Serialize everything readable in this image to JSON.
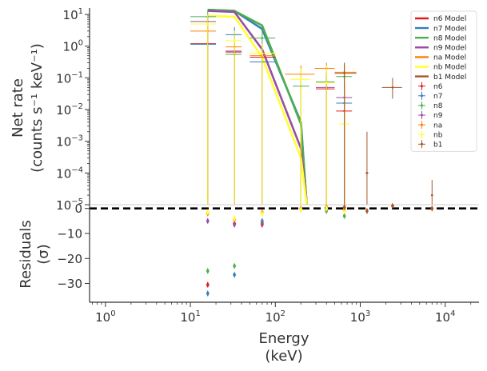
{
  "chart_data": [
    {
      "panel": "net-rate",
      "type": "line",
      "ylabel_lines": [
        "Net rate",
        "(counts s⁻¹ keV⁻¹)"
      ],
      "xscale": "log",
      "yscale": "log",
      "xlim": [
        0.65,
        25000
      ],
      "ylim": [
        1e-05,
        16
      ],
      "y_ticks": [
        {
          "v": 10,
          "base": "10",
          "exp": "1"
        },
        {
          "v": 1,
          "base": "10",
          "exp": "0"
        },
        {
          "v": 0.1,
          "base": "10",
          "exp": "−1"
        },
        {
          "v": 0.01,
          "base": "10",
          "exp": "−2"
        },
        {
          "v": 0.001,
          "base": "10",
          "exp": "−3"
        },
        {
          "v": 0.0001,
          "base": "10",
          "exp": "−4"
        },
        {
          "v": 1e-05,
          "base": "10",
          "exp": "−5"
        }
      ],
      "legend": {
        "position": "top-right",
        "entries": [
          {
            "label": "n6 Model",
            "kind": "line",
            "color": "#e41a1c"
          },
          {
            "label": "n7 Model",
            "kind": "line",
            "color": "#377eb8"
          },
          {
            "label": "n8 Model",
            "kind": "line",
            "color": "#4daf4a"
          },
          {
            "label": "n9 Model",
            "kind": "line",
            "color": "#984ea3"
          },
          {
            "label": "na Model",
            "kind": "line",
            "color": "#ff7f00"
          },
          {
            "label": "nb Model",
            "kind": "line",
            "color": "#ffff33"
          },
          {
            "label": "b1 Model",
            "kind": "line",
            "color": "#a65628"
          },
          {
            "label": "n6",
            "kind": "point",
            "color": "#e41a1c"
          },
          {
            "label": "n7",
            "kind": "point",
            "color": "#377eb8"
          },
          {
            "label": "n8",
            "kind": "point",
            "color": "#4daf4a"
          },
          {
            "label": "n9",
            "kind": "point",
            "color": "#984ea3"
          },
          {
            "label": "na",
            "kind": "point",
            "color": "#ff7f00"
          },
          {
            "label": "nb",
            "kind": "point",
            "color": "#ffff33"
          },
          {
            "label": "b1",
            "kind": "point",
            "color": "#a65628"
          }
        ]
      },
      "model_series": [
        {
          "name": "n7 Model",
          "color": "#377eb8",
          "points": [
            [
              16,
              14
            ],
            [
              33,
              13
            ],
            [
              70,
              3.5
            ],
            [
              200,
              0.004
            ],
            [
              240,
              4e-06
            ]
          ]
        },
        {
          "name": "n8 Model",
          "color": "#4daf4a",
          "points": [
            [
              16,
              14
            ],
            [
              33,
              13
            ],
            [
              70,
              4.5
            ],
            [
              200,
              0.0035
            ],
            [
              240,
              4e-06
            ]
          ]
        },
        {
          "name": "n9 Model",
          "color": "#984ea3",
          "points": [
            [
              16,
              13
            ],
            [
              33,
              12
            ],
            [
              70,
              0.8
            ],
            [
              200,
              0.0006
            ],
            [
              240,
              6e-06
            ]
          ]
        },
        {
          "name": "nb Model",
          "color": "#ffff33",
          "points": [
            [
              16,
              9
            ],
            [
              33,
              8.5
            ],
            [
              70,
              0.45
            ],
            [
              200,
              0.0003
            ],
            [
              245,
              4e-06
            ]
          ]
        }
      ],
      "data_series": [
        {
          "name": "n6",
          "color": "#e41a1c",
          "points": [
            {
              "x": 16,
              "xlo": 10,
              "xhi": 20,
              "y": 1.2,
              "ylo": 1e-05,
              "yhi": 8
            },
            {
              "x": 33,
              "xlo": 26,
              "xhi": 40,
              "y": 0.65,
              "ylo": 1e-05,
              "yhi": 1.1
            },
            {
              "x": 70,
              "xlo": 50,
              "xhi": 100,
              "y": 0.45,
              "ylo": 1e-05,
              "yhi": 1.0
            },
            {
              "x": 400,
              "xlo": 300,
              "xhi": 500,
              "y": 0.045,
              "ylo": 1e-05,
              "yhi": 0.1
            },
            {
              "x": 650,
              "xlo": 520,
              "xhi": 800,
              "y": 0.009,
              "ylo": 1e-05,
              "yhi": 0.05
            }
          ]
        },
        {
          "name": "n7",
          "color": "#377eb8",
          "points": [
            {
              "x": 16,
              "xlo": 10,
              "xhi": 20,
              "y": 1.15,
              "ylo": 1e-05,
              "yhi": 6
            },
            {
              "x": 33,
              "xlo": 26,
              "xhi": 40,
              "y": 2.3,
              "ylo": 1e-05,
              "yhi": 4
            },
            {
              "x": 70,
              "xlo": 50,
              "xhi": 100,
              "y": 0.32,
              "ylo": 1e-05,
              "yhi": 0.9
            },
            {
              "x": 650,
              "xlo": 520,
              "xhi": 800,
              "y": 0.016,
              "ylo": 1e-05,
              "yhi": 0.05
            }
          ]
        },
        {
          "name": "n8",
          "color": "#4daf4a",
          "points": [
            {
              "x": 16,
              "xlo": 10,
              "xhi": 20,
              "y": 8.5,
              "ylo": 1e-05,
              "yhi": 14
            },
            {
              "x": 33,
              "xlo": 26,
              "xhi": 40,
              "y": 0.55,
              "ylo": 1e-05,
              "yhi": 1.2
            },
            {
              "x": 70,
              "xlo": 50,
              "xhi": 100,
              "y": 1.8,
              "ylo": 1e-05,
              "yhi": 3
            },
            {
              "x": 200,
              "xlo": 160,
              "xhi": 250,
              "y": 0.055,
              "ylo": 1e-05,
              "yhi": 0.1
            },
            {
              "x": 400,
              "xlo": 300,
              "xhi": 500,
              "y": 0.075,
              "ylo": 1e-05,
              "yhi": 0.15
            },
            {
              "x": 650,
              "xlo": 520,
              "xhi": 800,
              "y": 0.11,
              "ylo": 1e-05,
              "yhi": 0.25
            }
          ]
        },
        {
          "name": "n9",
          "color": "#984ea3",
          "points": [
            {
              "x": 16,
              "xlo": 10,
              "xhi": 20,
              "y": 6,
              "ylo": 1e-05,
              "yhi": 10
            },
            {
              "x": 33,
              "xlo": 26,
              "xhi": 40,
              "y": 0.7,
              "ylo": 1e-05,
              "yhi": 1.3
            },
            {
              "x": 70,
              "xlo": 50,
              "xhi": 100,
              "y": 0.6,
              "ylo": 1e-05,
              "yhi": 1.2
            },
            {
              "x": 400,
              "xlo": 300,
              "xhi": 500,
              "y": 0.05,
              "ylo": 1e-05,
              "yhi": 0.12
            },
            {
              "x": 650,
              "xlo": 520,
              "xhi": 800,
              "y": 0.024,
              "ylo": 1e-05,
              "yhi": 0.06
            }
          ]
        },
        {
          "name": "na",
          "color": "#ff7f00",
          "points": [
            {
              "x": 16,
              "xlo": 10,
              "xhi": 20,
              "y": 3,
              "ylo": 1e-05,
              "yhi": 7
            },
            {
              "x": 33,
              "xlo": 26,
              "xhi": 40,
              "y": 0.95,
              "ylo": 1e-05,
              "yhi": 2
            },
            {
              "x": 70,
              "xlo": 50,
              "xhi": 100,
              "y": 0.5,
              "ylo": 1e-05,
              "yhi": 1.1
            },
            {
              "x": 200,
              "xlo": 130,
              "xhi": 290,
              "y": 0.13,
              "ylo": 1e-05,
              "yhi": 0.25
            },
            {
              "x": 400,
              "xlo": 290,
              "xhi": 500,
              "y": 0.2,
              "ylo": 1e-05,
              "yhi": 0.3
            },
            {
              "x": 650,
              "xlo": 500,
              "xhi": 900,
              "y": 0.15,
              "ylo": 1e-05,
              "yhi": 0.3
            }
          ]
        },
        {
          "name": "nb",
          "color": "#ffff33",
          "points": [
            {
              "x": 16,
              "xlo": 10,
              "xhi": 20,
              "y": 5,
              "ylo": 1e-05,
              "yhi": 10
            },
            {
              "x": 33,
              "xlo": 26,
              "xhi": 40,
              "y": 1.5,
              "ylo": 1e-05,
              "yhi": 3
            },
            {
              "x": 70,
              "xlo": 50,
              "xhi": 100,
              "y": 0.6,
              "ylo": 1e-05,
              "yhi": 1.2
            },
            {
              "x": 200,
              "xlo": 150,
              "xhi": 260,
              "y": 0.09,
              "ylo": 1e-05,
              "yhi": 0.2
            },
            {
              "x": 400,
              "xlo": 300,
              "xhi": 500,
              "y": 0.07,
              "ylo": 1e-05,
              "yhi": 0.25
            },
            {
              "x": 650,
              "xlo": 560,
              "xhi": 750,
              "y": 0.0035,
              "ylo": 1e-05,
              "yhi": 0.05
            }
          ]
        },
        {
          "name": "b1",
          "color": "#a65628",
          "points": [
            {
              "x": 650,
              "xlo": 500,
              "xhi": 900,
              "y": 0.14,
              "ylo": 1e-05,
              "yhi": 0.3
            },
            {
              "x": 1200,
              "xlo": 1150,
              "xhi": 1250,
              "y": 0.0001,
              "ylo": 1e-05,
              "yhi": 0.002
            },
            {
              "x": 2400,
              "xlo": 1800,
              "xhi": 3100,
              "y": 0.05,
              "ylo": 0.022,
              "yhi": 0.1
            },
            {
              "x": 7000,
              "xlo": 6800,
              "xhi": 7200,
              "y": 2e-05,
              "ylo": 1e-05,
              "yhi": 6e-05
            }
          ]
        }
      ]
    },
    {
      "panel": "residuals",
      "type": "scatter",
      "ylabel_lines": [
        "Residuals",
        "(σ)"
      ],
      "xlabel_lines": [
        "Energy",
        "(keV)"
      ],
      "xscale": "log",
      "xlim": [
        0.65,
        25000
      ],
      "ylim": [
        -37.5,
        1.5
      ],
      "y_ticks": [
        0,
        -10,
        -20,
        -30
      ],
      "x_ticks": [
        {
          "v": 1,
          "base": "10",
          "exp": "0"
        },
        {
          "v": 10,
          "base": "10",
          "exp": "1"
        },
        {
          "v": 100,
          "base": "10",
          "exp": "2"
        },
        {
          "v": 1000,
          "base": "10",
          "exp": "3"
        },
        {
          "v": 10000,
          "base": "10",
          "exp": "4"
        }
      ],
      "zero_line": 0,
      "series": [
        {
          "name": "n6",
          "color": "#e41a1c",
          "points": [
            [
              16,
              -30.5
            ],
            [
              33,
              -6
            ],
            [
              70,
              -6.5
            ]
          ]
        },
        {
          "name": "n7",
          "color": "#377eb8",
          "points": [
            [
              16,
              -34
            ],
            [
              33,
              -26.5
            ],
            [
              70,
              -5
            ]
          ]
        },
        {
          "name": "n8",
          "color": "#4daf4a",
          "points": [
            [
              16,
              -25
            ],
            [
              33,
              -23
            ],
            [
              70,
              -5.5
            ],
            [
              200,
              -0.5
            ],
            [
              400,
              -1
            ],
            [
              650,
              -3
            ]
          ]
        },
        {
          "name": "n9",
          "color": "#984ea3",
          "points": [
            [
              16,
              -5
            ],
            [
              33,
              -6.5
            ],
            [
              70,
              -6
            ],
            [
              400,
              0
            ],
            [
              650,
              -0.5
            ]
          ]
        },
        {
          "name": "na",
          "color": "#ff7f00",
          "points": [
            [
              16,
              -2
            ],
            [
              33,
              -4.5
            ],
            [
              70,
              -1.5
            ],
            [
              200,
              0
            ],
            [
              400,
              0.5
            ],
            [
              650,
              0
            ]
          ]
        },
        {
          "name": "nb",
          "color": "#ffff33",
          "points": [
            [
              16,
              -1.5
            ],
            [
              33,
              -4
            ],
            [
              70,
              -2
            ],
            [
              200,
              -0.5
            ],
            [
              400,
              0
            ],
            [
              650,
              -1
            ]
          ]
        },
        {
          "name": "b1",
          "color": "#a65628",
          "points": [
            [
              650,
              0.5
            ],
            [
              1200,
              -1
            ],
            [
              2400,
              1
            ],
            [
              7000,
              0
            ]
          ]
        }
      ]
    }
  ]
}
